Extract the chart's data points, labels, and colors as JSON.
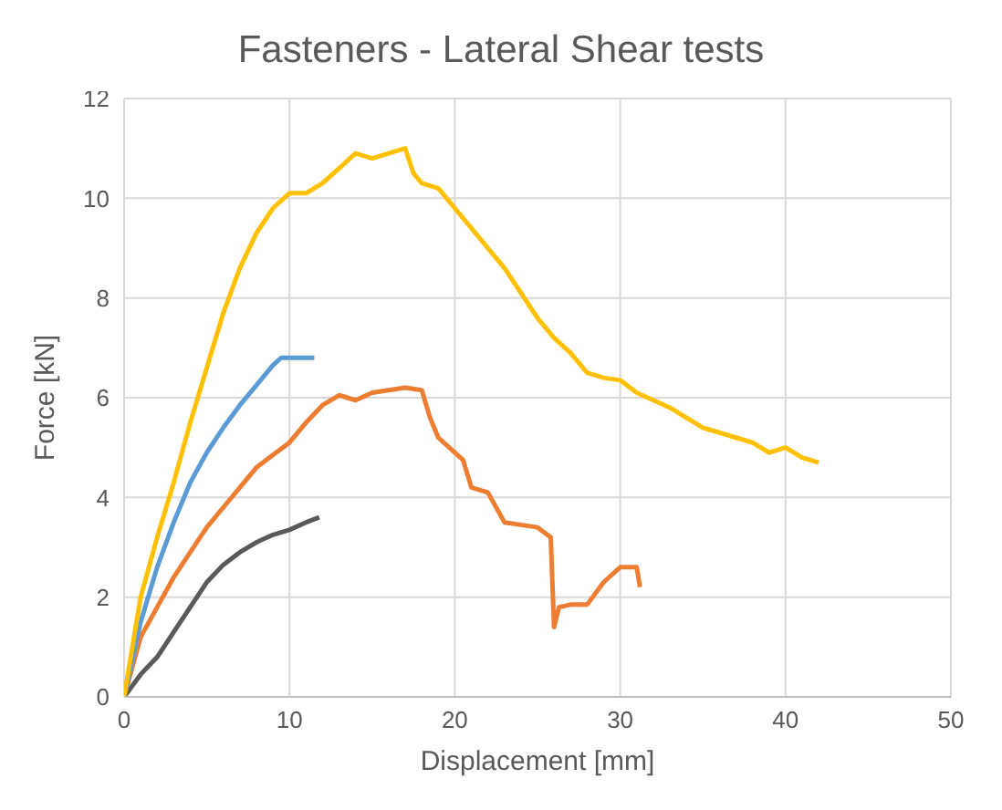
{
  "chart_data": {
    "type": "line",
    "title": "Fasteners - Lateral Shear tests",
    "xlabel": "Displacement [mm]",
    "ylabel": "Force [kN]",
    "xlim": [
      0,
      50
    ],
    "xticks": [
      0,
      10,
      20,
      30,
      40,
      50
    ],
    "ylim": [
      0,
      12
    ],
    "yticks": [
      0,
      2,
      4,
      6,
      8,
      10,
      12
    ],
    "grid": true,
    "legend": false,
    "marker": "none",
    "line_style": "solid",
    "series": [
      {
        "color": "#595959",
        "x": [
          0,
          1,
          2,
          3,
          4,
          5,
          6,
          7,
          8,
          9,
          10,
          11,
          11.8
        ],
        "values": [
          0,
          0.45,
          0.8,
          1.3,
          1.8,
          2.3,
          2.65,
          2.9,
          3.1,
          3.25,
          3.35,
          3.5,
          3.6
        ]
      },
      {
        "color": "#ed7d31",
        "x": [
          0,
          1,
          2,
          3,
          4,
          5,
          6,
          7,
          8,
          9,
          10,
          11,
          12,
          13,
          14,
          15,
          16,
          17,
          18,
          18.5,
          19,
          20,
          20.5,
          21,
          22,
          22.5,
          23,
          24,
          25,
          25.8,
          26,
          26.3,
          27,
          28,
          29,
          30,
          31,
          31.2
        ],
        "values": [
          0,
          1.2,
          1.8,
          2.4,
          2.9,
          3.4,
          3.8,
          4.2,
          4.6,
          4.85,
          5.1,
          5.5,
          5.85,
          6.05,
          5.95,
          6.1,
          6.15,
          6.2,
          6.15,
          5.6,
          5.2,
          4.9,
          4.75,
          4.2,
          4.1,
          3.8,
          3.5,
          3.45,
          3.4,
          3.2,
          1.4,
          1.8,
          1.85,
          1.85,
          2.3,
          2.6,
          2.6,
          2.2
        ]
      },
      {
        "color": "#5b9bd5",
        "x": [
          0,
          1,
          2,
          3,
          4,
          5,
          6,
          7,
          8,
          9,
          9.5,
          10,
          11.5
        ],
        "values": [
          0,
          1.5,
          2.6,
          3.5,
          4.3,
          4.9,
          5.4,
          5.85,
          6.25,
          6.65,
          6.8,
          6.8,
          6.8
        ]
      },
      {
        "color": "#ffc000",
        "x": [
          0,
          1,
          2,
          3,
          4,
          5,
          6,
          7,
          8,
          9,
          10,
          11,
          12,
          13,
          14,
          15,
          16,
          17,
          17.5,
          18,
          19,
          20,
          21,
          22,
          23,
          24,
          25,
          26,
          27,
          28,
          29,
          30,
          31,
          32,
          33,
          34,
          35,
          36,
          37,
          38,
          39,
          40,
          41,
          42
        ],
        "values": [
          0,
          2.0,
          3.2,
          4.3,
          5.5,
          6.6,
          7.7,
          8.6,
          9.3,
          9.8,
          10.1,
          10.1,
          10.3,
          10.6,
          10.9,
          10.8,
          10.9,
          11.0,
          10.5,
          10.3,
          10.2,
          9.8,
          9.4,
          9.0,
          8.6,
          8.1,
          7.6,
          7.2,
          6.9,
          6.5,
          6.4,
          6.35,
          6.1,
          5.95,
          5.8,
          5.6,
          5.4,
          5.3,
          5.2,
          5.1,
          4.9,
          5.0,
          4.8,
          4.7
        ]
      }
    ]
  }
}
